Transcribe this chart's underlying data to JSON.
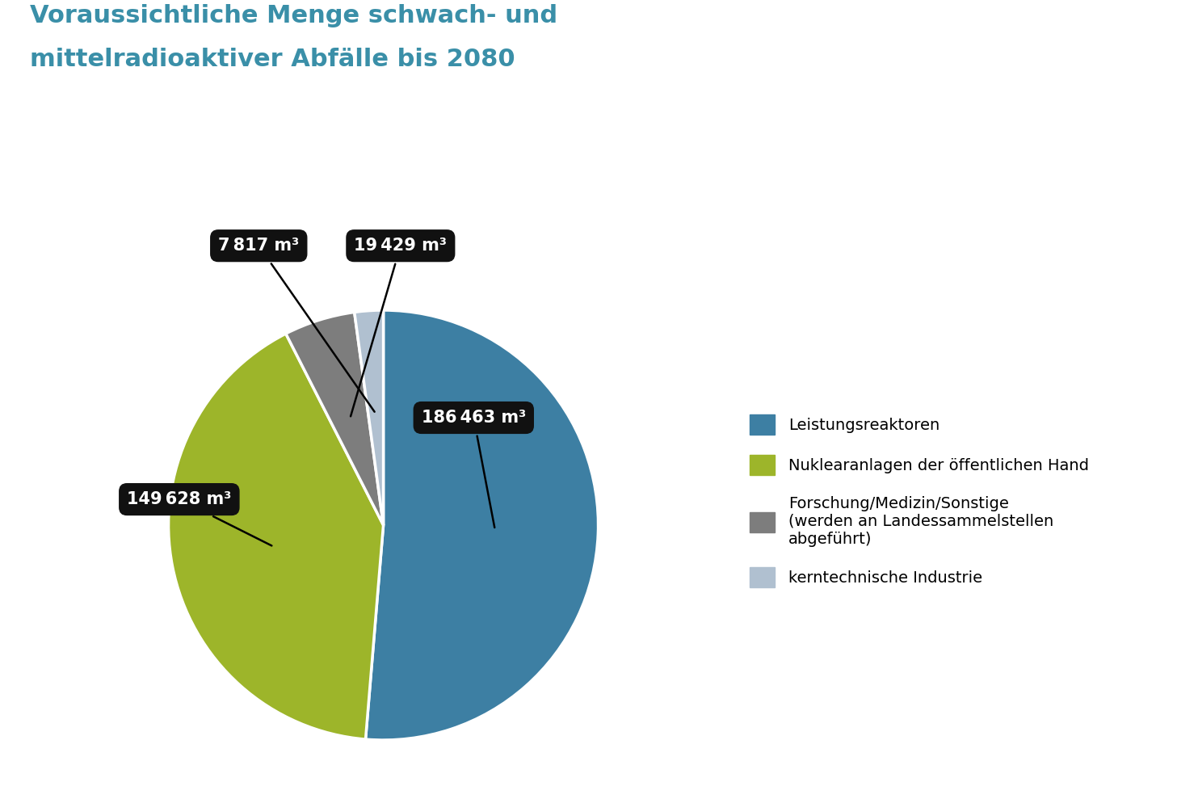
{
  "title_line1": "Voraussichtliche Menge schwach- und",
  "title_line2": "mittelradioaktiver Abfälle bis 2080",
  "title_color": "#3a8fa8",
  "values": [
    186463,
    149628,
    19429,
    7817
  ],
  "colors": [
    "#3d7fa3",
    "#9db52a",
    "#7d7d7d",
    "#b0c0d0"
  ],
  "legend_labels": [
    "Leistungsreaktoren",
    "Nuklearanlagen der öffentlichen Hand",
    "Forschung/Medizin/Sonstige\n(werden an Landessammelstellen\nabgeführt)",
    "kerntechnische Industrie"
  ],
  "annotation_labels": [
    "186 463 m³",
    "149 628 m³",
    "19 429 m³",
    "7 817 m³"
  ],
  "background_color": "#ffffff",
  "label_fontsize": 15,
  "title_fontsize": 22,
  "legend_fontsize": 14
}
